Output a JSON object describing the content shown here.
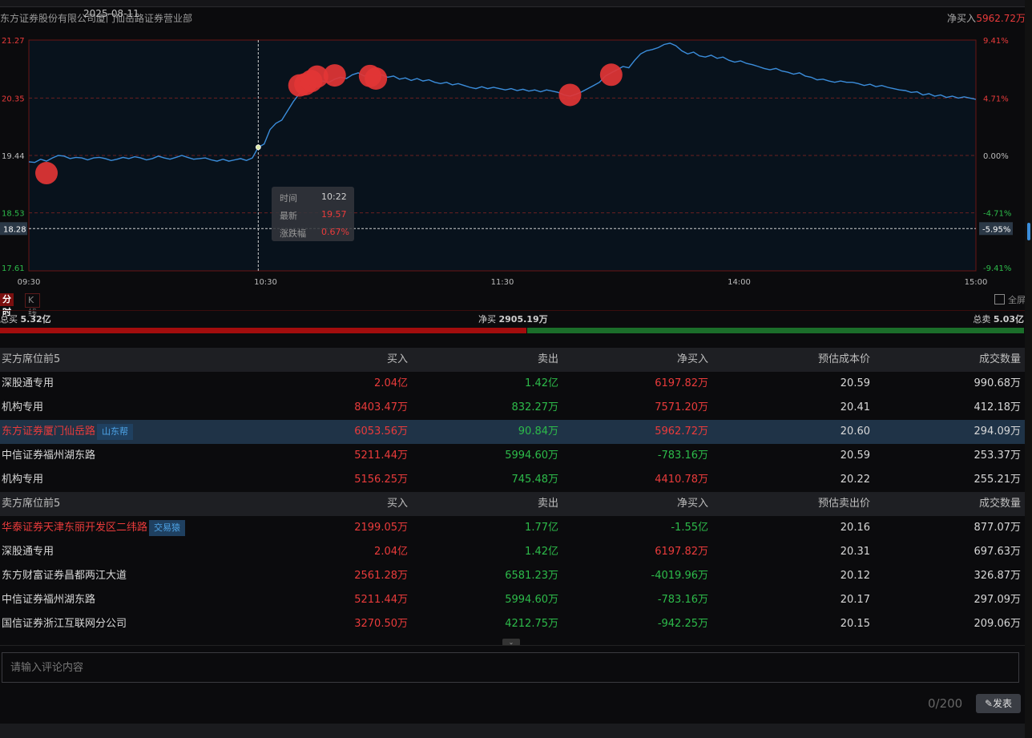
{
  "header": {
    "broker": "东方证券股份有限公司厦门仙岳路证券营业部",
    "date": "2025-08-11",
    "net_buy_label": "净买入",
    "net_buy_value": "5962.72万"
  },
  "chart_data": {
    "type": "line",
    "x_ticks": [
      "09:30",
      "10:30",
      "11:30",
      "14:00",
      "15:00"
    ],
    "y_left_ticks": [
      "21.27",
      "20.35",
      "19.44",
      "18.53",
      "17.61"
    ],
    "y_right_ticks": [
      "9.41%",
      "4.71%",
      "0.00%",
      "-4.71%",
      "-9.41%"
    ],
    "ylim": [
      17.61,
      21.27
    ],
    "prev_close": 19.44,
    "crosshair_price": "18.28",
    "crosshair_pct": "-5.95%",
    "series": [
      {
        "values": [
          19.34,
          19.33,
          19.38,
          19.35,
          19.4,
          19.44,
          19.43,
          19.39,
          19.41,
          19.4,
          19.37,
          19.4,
          19.41,
          19.39,
          19.36,
          19.38,
          19.41,
          19.39,
          19.42,
          19.4,
          19.37,
          19.39,
          19.43,
          19.4,
          19.38,
          19.41,
          19.44,
          19.41,
          19.38,
          19.39,
          19.4,
          19.37,
          19.35,
          19.38,
          19.35,
          19.37,
          19.39,
          19.36,
          19.4,
          19.57,
          19.62,
          19.85,
          19.95,
          20.0,
          20.15,
          20.3,
          20.42,
          20.48,
          20.55,
          20.6,
          20.62,
          20.6,
          20.65,
          20.68,
          20.66,
          20.72,
          20.75,
          20.7,
          20.73,
          20.7,
          20.72,
          20.68,
          20.7,
          20.65,
          20.67,
          20.63,
          20.66,
          20.62,
          20.64,
          20.6,
          20.58,
          20.6,
          20.56,
          20.58,
          20.55,
          20.52,
          20.5,
          20.53,
          20.5,
          20.52,
          20.5,
          20.48,
          20.5,
          20.47,
          20.49,
          20.46,
          20.48,
          20.45,
          20.48,
          20.46,
          20.44,
          20.4,
          20.38,
          20.41,
          20.45,
          20.5,
          20.55,
          20.6,
          20.7,
          20.75,
          20.8,
          20.85,
          20.83,
          20.95,
          21.05,
          21.1,
          21.12,
          21.15,
          21.2,
          21.22,
          21.18,
          21.1,
          21.05,
          21.08,
          21.02,
          21.0,
          21.03,
          20.98,
          21.0,
          20.95,
          20.92,
          20.94,
          20.9,
          20.88,
          20.85,
          20.82,
          20.8,
          20.82,
          20.78,
          20.76,
          20.73,
          20.75,
          20.7,
          20.68,
          20.64,
          20.65,
          20.62,
          20.6,
          20.62,
          20.6,
          20.6,
          20.58,
          20.55,
          20.57,
          20.53,
          20.55,
          20.52,
          20.5,
          20.48,
          20.47,
          20.44,
          20.45,
          20.4,
          20.42,
          20.38,
          20.4,
          20.36,
          20.38,
          20.35,
          20.37,
          20.35,
          20.33
        ]
      }
    ],
    "markers": [
      {
        "x_index": 3,
        "y": 19.16
      },
      {
        "x_index": 46,
        "y": 20.55
      },
      {
        "x_index": 47,
        "y": 20.57
      },
      {
        "x_index": 48,
        "y": 20.62
      },
      {
        "x_index": 49,
        "y": 20.69
      },
      {
        "x_index": 52,
        "y": 20.71
      },
      {
        "x_index": 58,
        "y": 20.7
      },
      {
        "x_index": 59,
        "y": 20.66
      },
      {
        "x_index": 92,
        "y": 20.4
      },
      {
        "x_index": 99,
        "y": 20.72
      }
    ],
    "tooltip": {
      "time_label": "时间",
      "time": "10:22",
      "latest_label": "最新",
      "latest": "19.57",
      "change_label": "涨跌幅",
      "change": "0.67%"
    }
  },
  "tabs": {
    "minute": "分时",
    "kline": "K线",
    "fullscreen": "全屏"
  },
  "summary": {
    "total_buy_label": "总买",
    "total_buy": "5.32亿",
    "net_buy_label": "净买",
    "net_buy": "2905.19万",
    "total_sell_label": "总卖",
    "total_sell": "5.03亿",
    "buy_ratio": 0.514
  },
  "buy_table": {
    "headers": [
      "买方席位前5",
      "买入",
      "卖出",
      "净买入",
      "预估成本价",
      "成交数量"
    ],
    "rows": [
      {
        "name": "深股通专用",
        "buy": "2.04亿",
        "sell": "1.42亿",
        "net": "6197.82万",
        "price": "20.59",
        "volume": "990.68万",
        "tag": ""
      },
      {
        "name": "机构专用",
        "buy": "8403.47万",
        "sell": "832.27万",
        "net": "7571.20万",
        "price": "20.41",
        "volume": "412.18万",
        "tag": ""
      },
      {
        "name": "东方证券厦门仙岳路",
        "buy": "6053.56万",
        "sell": "90.84万",
        "net": "5962.72万",
        "price": "20.60",
        "volume": "294.09万",
        "tag": "山东帮"
      },
      {
        "name": "中信证券福州湖东路",
        "buy": "5211.44万",
        "sell": "5994.60万",
        "net": "-783.16万",
        "price": "20.59",
        "volume": "253.37万",
        "tag": ""
      },
      {
        "name": "机构专用",
        "buy": "5156.25万",
        "sell": "745.48万",
        "net": "4410.78万",
        "price": "20.22",
        "volume": "255.21万",
        "tag": ""
      }
    ]
  },
  "sell_table": {
    "headers": [
      "卖方席位前5",
      "买入",
      "卖出",
      "净买入",
      "预估卖出价",
      "成交数量"
    ],
    "rows": [
      {
        "name": "华泰证券天津东丽开发区二纬路",
        "buy": "2199.05万",
        "sell": "1.77亿",
        "net": "-1.55亿",
        "price": "20.16",
        "volume": "877.07万",
        "tag": "交易猿"
      },
      {
        "name": "深股通专用",
        "buy": "2.04亿",
        "sell": "1.42亿",
        "net": "6197.82万",
        "price": "20.31",
        "volume": "697.63万",
        "tag": ""
      },
      {
        "name": "东方财富证券昌都两江大道",
        "buy": "2561.28万",
        "sell": "6581.23万",
        "net": "-4019.96万",
        "price": "20.12",
        "volume": "326.87万",
        "tag": ""
      },
      {
        "name": "中信证券福州湖东路",
        "buy": "5211.44万",
        "sell": "5994.60万",
        "net": "-783.16万",
        "price": "20.17",
        "volume": "297.09万",
        "tag": ""
      },
      {
        "name": "国信证券浙江互联网分公司",
        "buy": "3270.50万",
        "sell": "4212.75万",
        "net": "-942.25万",
        "price": "20.15",
        "volume": "209.06万",
        "tag": ""
      }
    ]
  },
  "comment": {
    "placeholder": "请输入评论内容",
    "counter": "0/200",
    "post": "发表"
  },
  "colors": {
    "up": "#ea3b3b",
    "down": "#2dbb4a",
    "line": "#3b8ddb",
    "marker": "#e23535"
  }
}
